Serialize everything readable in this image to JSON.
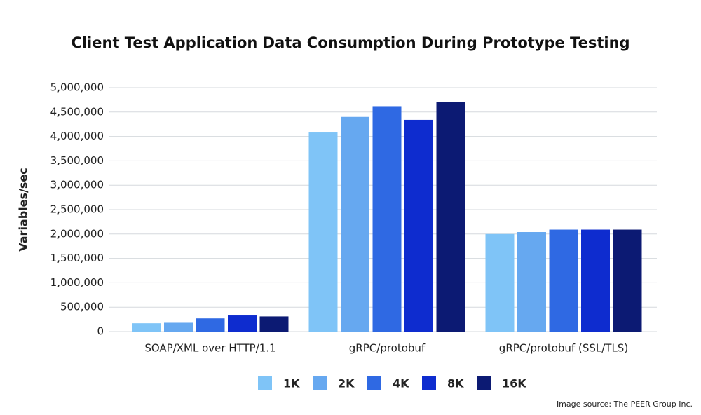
{
  "chart_data": {
    "type": "bar",
    "title": "Client Test Application Data Consumption During Prototype Testing",
    "y_label": "Variables/sec",
    "source": "Image source: The PEER Group Inc.",
    "categories": [
      "SOAP/XML over HTTP/1.1",
      "gRPC/protobuf",
      "gRPC/protobuf (SSL/TLS)"
    ],
    "series": [
      {
        "name": "1K",
        "color": "#7fc4f7",
        "values": [
          170000,
          4080000,
          2000000
        ]
      },
      {
        "name": "2K",
        "color": "#66a8f0",
        "values": [
          180000,
          4400000,
          2040000
        ]
      },
      {
        "name": "4K",
        "color": "#2f69e3",
        "values": [
          270000,
          4620000,
          2090000
        ]
      },
      {
        "name": "8K",
        "color": "#0e2ccf",
        "values": [
          330000,
          4340000,
          2090000
        ]
      },
      {
        "name": "16K",
        "color": "#0c1a73",
        "values": [
          310000,
          4700000,
          2090000
        ]
      }
    ],
    "ylim": [
      0,
      5000000
    ],
    "yticks": [
      0,
      {
        "value": 500000,
        "label": "500,000"
      },
      {
        "value": 1000000,
        "label": "1,000,000"
      },
      {
        "value": 1500000,
        "label": "1,500,000"
      },
      {
        "value": 2000000,
        "label": "2,000,000"
      },
      {
        "value": 2500000,
        "label": "2,500,000"
      },
      {
        "value": 3000000,
        "label": "3,000,000"
      },
      {
        "value": 3500000,
        "label": "3,500,000"
      },
      {
        "value": 4000000,
        "label": "4,000,000"
      },
      {
        "value": 4500000,
        "label": "4,500,000"
      },
      {
        "value": 5000000,
        "label": "5,000,000"
      }
    ],
    "grid": true
  }
}
